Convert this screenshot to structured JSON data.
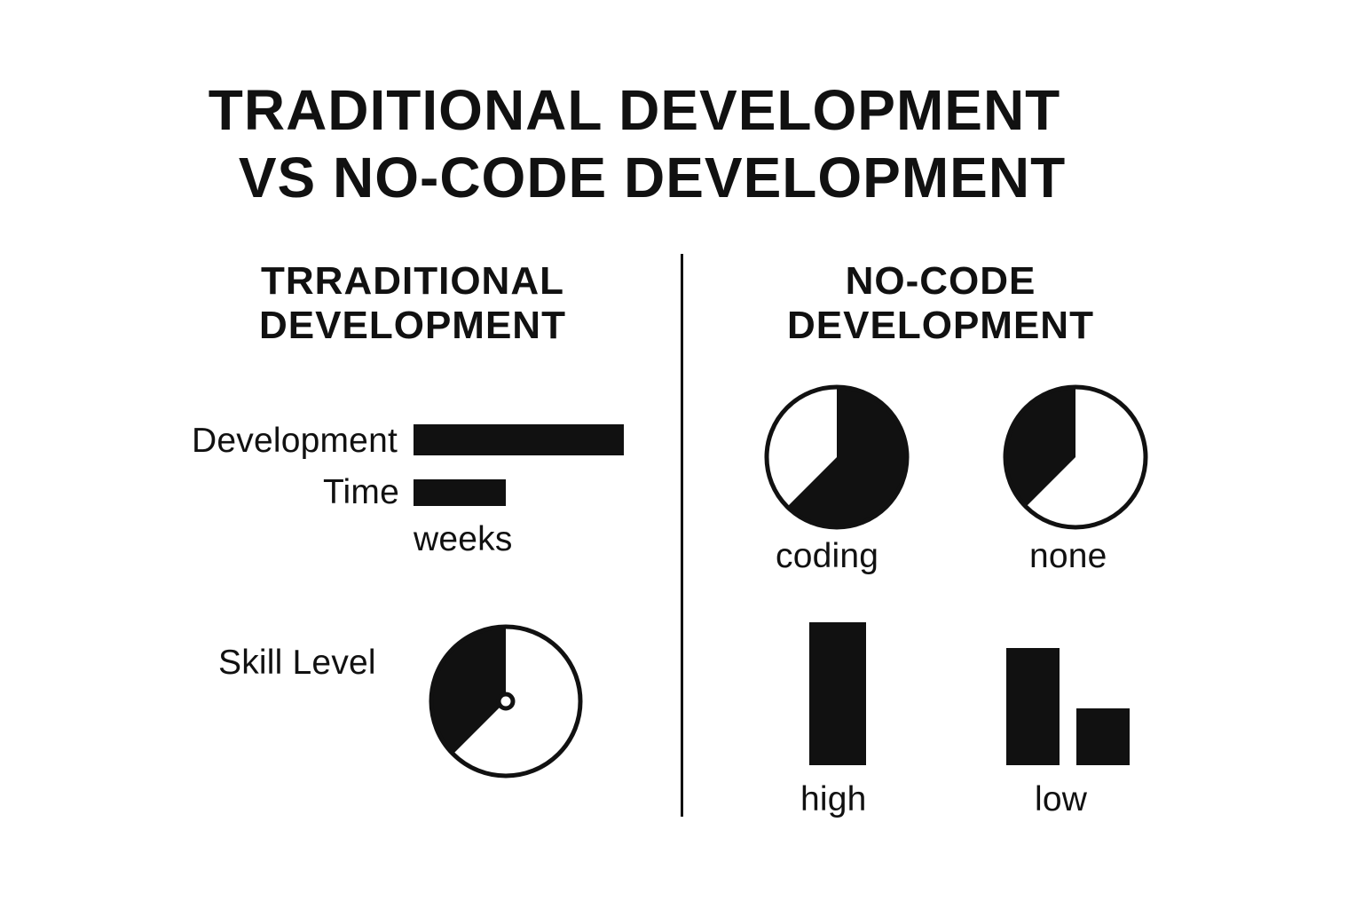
{
  "title": {
    "line1": "TRADITIONAL DEVELOPMENT",
    "line2": "VS NO-CODE DEVELOPMENT"
  },
  "traditional": {
    "heading_line1": "TRRADITIONAL",
    "heading_line2": "DEVELOPMENT",
    "dev_time_label_1": "Development",
    "dev_time_label_2": "Time",
    "dev_time_unit": "weeks",
    "dev_time_bars": [
      1.0,
      0.44
    ],
    "skill_label": "Skill Level",
    "skill_fraction": 0.375
  },
  "nocode": {
    "heading_line1": "NO-CODE",
    "heading_line2": "DEVELOPMENT",
    "pies": [
      {
        "label": "coding",
        "fraction": 0.625
      },
      {
        "label": "none",
        "fraction": 0.375
      }
    ],
    "bars": [
      {
        "label": "high",
        "values": [
          1.0
        ]
      },
      {
        "label": "low",
        "values": [
          0.82,
          0.4
        ]
      }
    ]
  },
  "colors": {
    "ink": "#111111",
    "background": "#ffffff"
  }
}
